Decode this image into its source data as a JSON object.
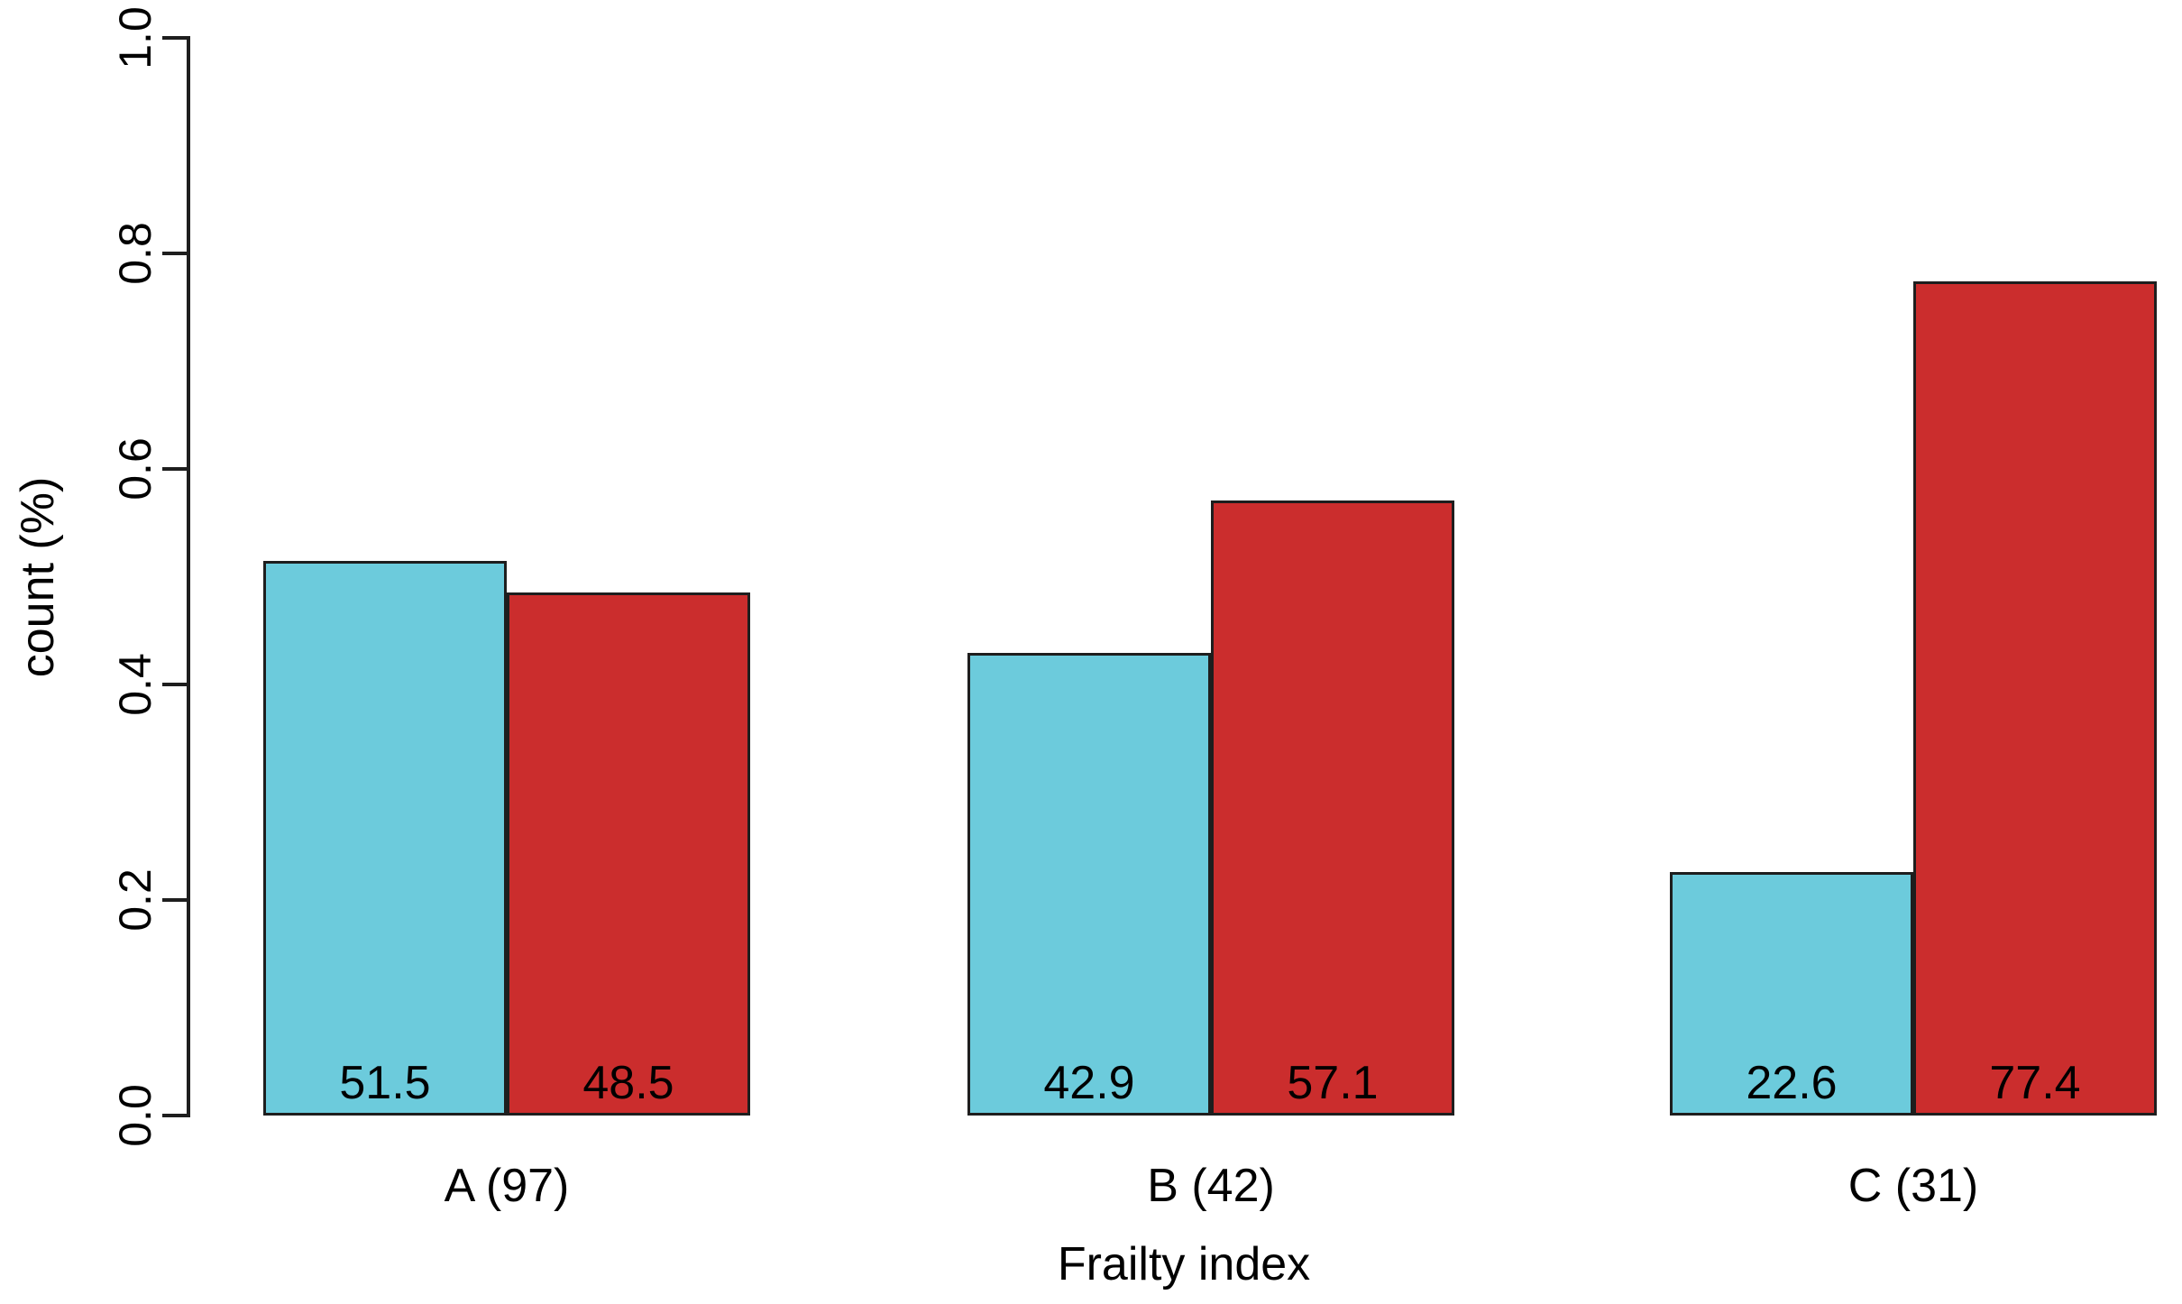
{
  "figure": {
    "background": "#ffffff"
  },
  "chart_data": {
    "type": "bar",
    "title": "",
    "xlabel": "Frailty index",
    "ylabel": "count (%)",
    "categories": [
      "A (97)",
      "B (42)",
      "C (31)"
    ],
    "series": [
      {
        "color": "#6CCBDC",
        "values": [
          51.5,
          42.9,
          22.6
        ]
      },
      {
        "color": "#CB2D2D",
        "values": [
          48.5,
          57.1,
          77.4
        ]
      }
    ],
    "value_label_decimals": 1,
    "value_axis_scale": 0.01,
    "ylim": [
      0.0,
      1.0
    ],
    "yticks": [
      "0.0",
      "0.2",
      "0.4",
      "0.6",
      "0.8",
      "1.0"
    ],
    "grid": false,
    "legend": "none",
    "bar_border_color": "#1e1e1e",
    "axis_color": "#1e1e1e",
    "text_color": "#000000"
  }
}
